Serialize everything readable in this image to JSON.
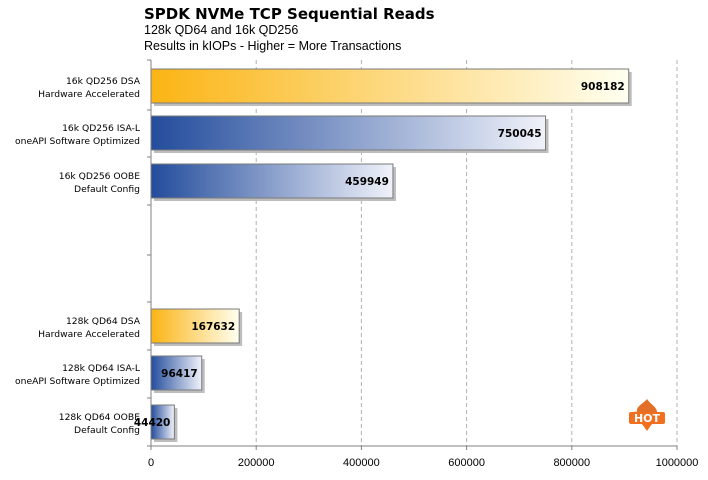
{
  "chart_data": {
    "type": "bar",
    "orientation": "horizontal",
    "title": "SPDK NVMe TCP Sequential Reads",
    "subtitle": [
      "128k QD64 and 16k QD256",
      "Results in kIOPs - Higher = More Transactions"
    ],
    "xlim": [
      0,
      1000000
    ],
    "xticks": [
      "0",
      "200000",
      "400000",
      "600000",
      "800000",
      "1000000"
    ],
    "grid": true,
    "legend": "none",
    "categories": [
      {
        "lines": [
          "16k QD256 DSA",
          "Hardware Accelerated"
        ],
        "value": 908182,
        "label": "908182",
        "style": "gold"
      },
      {
        "lines": [
          "16k QD256 ISA-L",
          "oneAPI Software Optimized"
        ],
        "value": 750045,
        "label": "750045",
        "style": "blue"
      },
      {
        "lines": [
          "16k QD256 OOBE",
          "Default Config"
        ],
        "value": 459949,
        "label": "459949",
        "style": "blue"
      },
      {
        "lines": [
          "128k QD64 DSA",
          "Hardware Accelerated"
        ],
        "value": 167632,
        "label": "167632",
        "style": "gold"
      },
      {
        "lines": [
          "128k QD64 ISA-L",
          "oneAPI Software Optimized"
        ],
        "value": 96417,
        "label": "96417",
        "style": "blue"
      },
      {
        "lines": [
          "128k QD64 OOBE",
          "Default Config"
        ],
        "value": 44420,
        "label": "44420",
        "style": "blue"
      }
    ]
  },
  "colors": {
    "gold_start": "#fbb414",
    "gold_end": "#fffff0",
    "blue_start": "#234c9c",
    "blue_end": "#f0f2fa",
    "grid": "#b0b0b0",
    "axis": "#808080"
  },
  "watermark": {
    "text": "HOT",
    "icon": "hothardware-flame-logo"
  }
}
